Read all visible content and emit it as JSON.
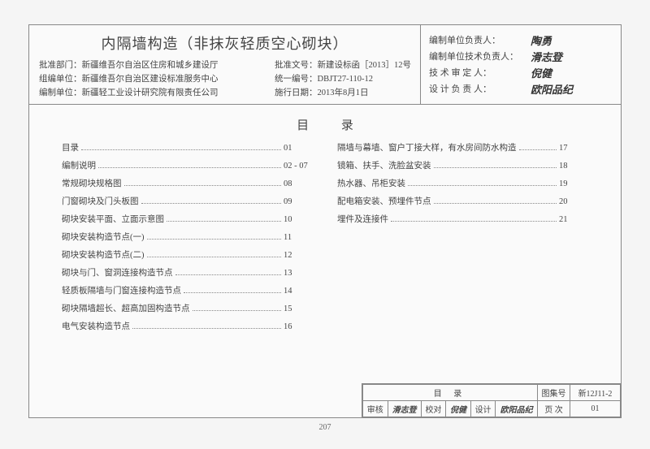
{
  "title": "内隔墙构造（非抹灰轻质空心砌块）",
  "info": {
    "approve_dept_label": "批准部门：",
    "approve_dept": "新疆维吾尔自治区住房和城乡建设厅",
    "org_dept_label": "组编单位：",
    "org_dept": "新疆维吾尔自治区建设标准服务中心",
    "compile_dept_label": "编制单位：",
    "compile_dept": "新疆轻工业设计研究院有限责任公司",
    "approve_doc_label": "批准文号：",
    "approve_doc": "新建设标函［2013］12号",
    "code_label": "统一编号：",
    "code": "DBJT27-110-12",
    "exec_date_label": "施行日期：",
    "exec_date": "2013年8月1日"
  },
  "sig": {
    "unit_head_label": "编制单位负责人：",
    "unit_head": "陶勇",
    "tech_head_label": "编制单位技术负责人：",
    "tech_head": "滑志登",
    "reviewer_label": "技 术 审 定 人：",
    "reviewer": "倪健",
    "designer_label": "设 计 负 责 人：",
    "designer": "欧阳品纪"
  },
  "toc_title": "目 录",
  "toc_left": [
    {
      "label": "目录",
      "page": "01"
    },
    {
      "label": "编制说明",
      "page": "02 - 07"
    },
    {
      "label": "常规砌块规格图",
      "page": "08"
    },
    {
      "label": "门窗砌块及门头板图",
      "page": "09"
    },
    {
      "label": "砌块安装平面、立面示意图",
      "page": "10"
    },
    {
      "label": "砌块安装构造节点(一)",
      "page": "11"
    },
    {
      "label": "砌块安装构造节点(二)",
      "page": "12"
    },
    {
      "label": "砌块与门、窗洞连接构造节点",
      "page": "13"
    },
    {
      "label": "轻质板隔墙与门窗连接构造节点",
      "page": "14"
    },
    {
      "label": "砌块隔墙超长、超高加固构造节点",
      "page": "15"
    },
    {
      "label": "电气安装构造节点",
      "page": "16"
    }
  ],
  "toc_right": [
    {
      "label": "隔墙与幕墙、窗户丁接大样，有水房间防水构造",
      "page": "17"
    },
    {
      "label": "镜箱、扶手、洗脸盆安装",
      "page": "18"
    },
    {
      "label": "热水器、吊柜安装",
      "page": "19"
    },
    {
      "label": "配电箱安装、预埋件节点",
      "page": "20"
    },
    {
      "label": "埋件及连接件",
      "page": "21"
    }
  ],
  "footer": {
    "center_title": "目  录",
    "check_label": "审核",
    "check_val": "滑志登",
    "proof_label": "校对",
    "proof_val": "倪健",
    "design_label": "设计",
    "design_val": "欧阳品纪",
    "atlas_label": "图集号",
    "atlas_val": "新12J11-2",
    "sheet_label": "页  次",
    "sheet_val": "01"
  },
  "page_number": "207"
}
